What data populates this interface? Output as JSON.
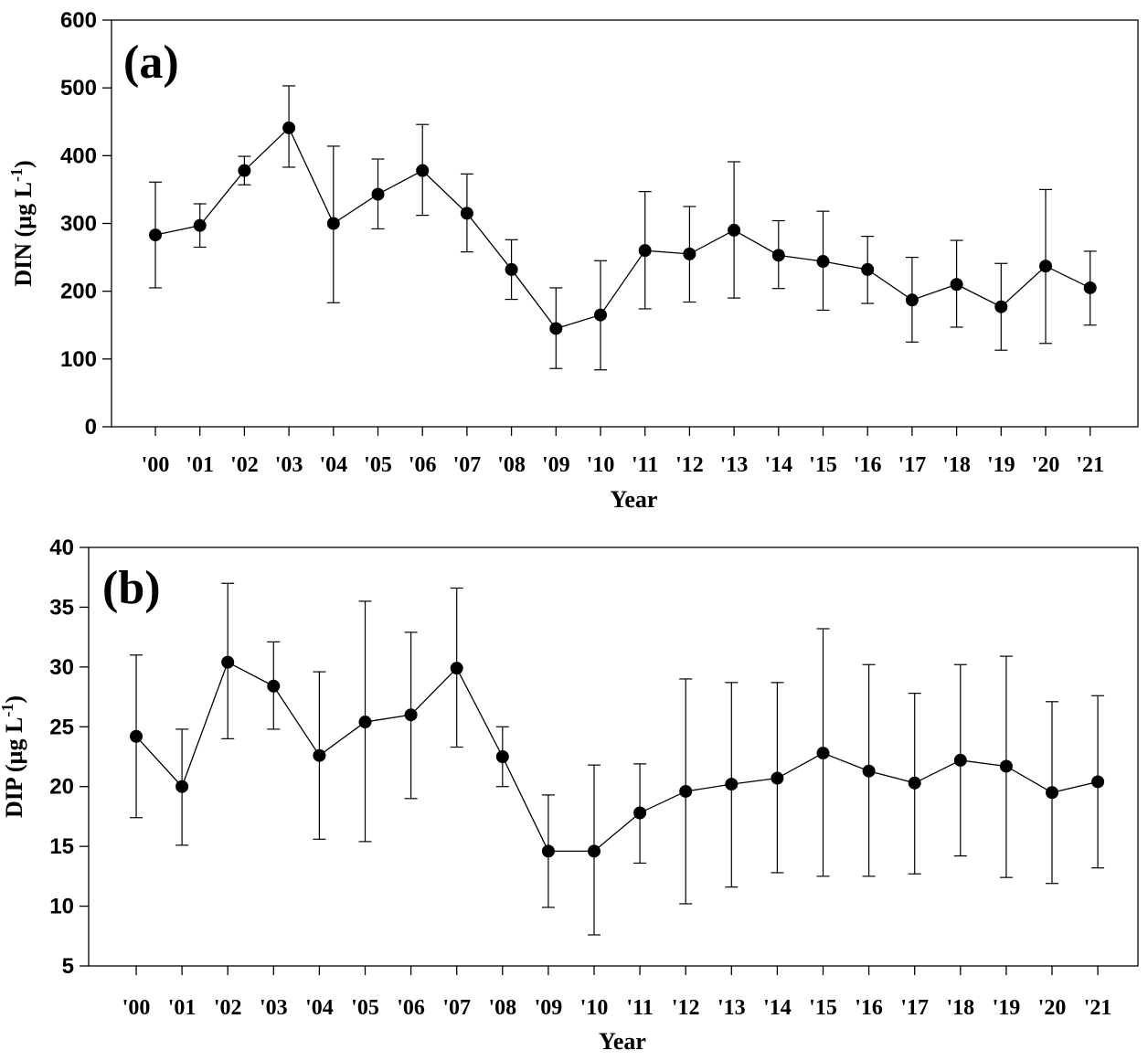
{
  "chart_data": [
    {
      "type": "line",
      "panel_label": "(a)",
      "xlabel": "Year",
      "ylabel": {
        "main": "DIN (µg L",
        "sup": "-1",
        "close": ")"
      },
      "ylim": [
        0,
        600
      ],
      "yticks": [
        "0",
        "100",
        "200",
        "300",
        "400",
        "500",
        "600"
      ],
      "categories": [
        "'00",
        "'01",
        "'02",
        "'03",
        "'04",
        "'05",
        "'06",
        "'07",
        "'08",
        "'09",
        "'10",
        "'11",
        "'12",
        "'13",
        "'14",
        "'15",
        "'16",
        "'17",
        "'18",
        "'19",
        "'20",
        "'21"
      ],
      "series": [
        {
          "values": [
            283,
            297,
            378,
            441,
            300,
            343,
            378,
            315,
            232,
            145,
            165,
            260,
            255,
            290,
            253,
            244,
            232,
            187,
            210,
            177,
            237,
            205
          ],
          "err_low": [
            205,
            265,
            357,
            383,
            183,
            292,
            312,
            258,
            188,
            86,
            84,
            174,
            184,
            190,
            204,
            172,
            182,
            125,
            147,
            113,
            123,
            150
          ],
          "err_high": [
            361,
            329,
            399,
            503,
            414,
            395,
            446,
            373,
            276,
            205,
            245,
            347,
            325,
            391,
            304,
            318,
            281,
            250,
            275,
            241,
            350,
            259
          ]
        }
      ],
      "grid": false,
      "marker_color": "#000000"
    },
    {
      "type": "line",
      "panel_label": "(b)",
      "xlabel": "Year",
      "ylabel": {
        "main": "DIP (µg L",
        "sup": "-1",
        "close": ")"
      },
      "ylim": [
        5,
        40
      ],
      "yticks": [
        "5",
        "10",
        "15",
        "20",
        "25",
        "30",
        "35",
        "40"
      ],
      "categories": [
        "'00",
        "'01",
        "'02",
        "'03",
        "'04",
        "'05",
        "'06",
        "'07",
        "'08",
        "'09",
        "'10",
        "'11",
        "'12",
        "'13",
        "'14",
        "'15",
        "'16",
        "'17",
        "'18",
        "'19",
        "'20",
        "'21"
      ],
      "series": [
        {
          "values": [
            24.2,
            20.0,
            30.4,
            28.4,
            22.6,
            25.4,
            26.0,
            29.9,
            22.5,
            14.6,
            14.6,
            17.8,
            19.6,
            20.2,
            20.7,
            22.8,
            21.3,
            20.3,
            22.2,
            21.7,
            19.5,
            20.4
          ],
          "err_low": [
            17.4,
            15.1,
            24.0,
            24.8,
            15.6,
            15.4,
            19.0,
            23.3,
            20.0,
            9.9,
            7.6,
            13.6,
            10.2,
            11.6,
            12.8,
            12.5,
            12.5,
            12.7,
            14.2,
            12.4,
            11.9,
            13.2
          ],
          "err_high": [
            31.0,
            24.8,
            37.0,
            32.1,
            29.6,
            35.5,
            32.9,
            36.6,
            25.0,
            19.3,
            21.8,
            21.9,
            29.0,
            28.7,
            28.7,
            33.2,
            30.2,
            27.8,
            30.2,
            30.9,
            27.1,
            27.6
          ]
        }
      ],
      "grid": false,
      "marker_color": "#000000"
    }
  ]
}
